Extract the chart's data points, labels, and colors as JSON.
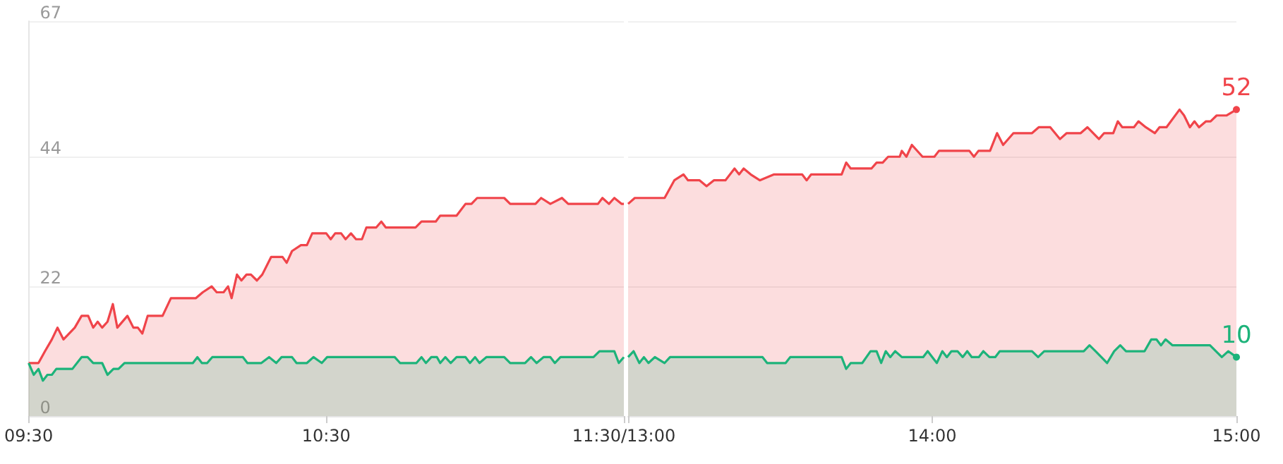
{
  "chart_data": [
    {
      "type": "area",
      "xlim": [
        9.5,
        11.5
      ],
      "xticks": [
        {
          "value": 9.5,
          "label": "09:30"
        },
        {
          "value": 10.5,
          "label": "10:30"
        },
        {
          "value": 11.5,
          "label": "11:30/13:00"
        }
      ],
      "ylim": [
        0,
        67
      ],
      "yticks": [
        0,
        22,
        44,
        67
      ],
      "grid": "y",
      "series": [
        {
          "color": "#f0444a",
          "x": [
            9.5,
            9.533,
            9.555,
            9.578,
            9.597,
            9.617,
            9.655,
            9.678,
            9.7,
            9.717,
            9.732,
            9.747,
            9.765,
            9.783,
            9.798,
            9.832,
            9.852,
            9.867,
            9.882,
            9.9,
            9.95,
            9.978,
            10.062,
            10.085,
            10.115,
            10.132,
            10.155,
            10.17,
            10.182,
            10.2,
            10.215,
            10.232,
            10.247,
            10.267,
            10.285,
            10.315,
            10.353,
            10.367,
            10.385,
            10.415,
            10.435,
            10.453,
            10.5,
            10.515,
            10.53,
            10.55,
            10.565,
            10.583,
            10.6,
            10.62,
            10.635,
            10.668,
            10.685,
            10.7,
            10.8,
            10.82,
            10.868,
            10.883,
            10.938,
            10.968,
            10.988,
            11.007,
            11.098,
            11.118,
            11.203,
            11.222,
            11.253,
            11.292,
            11.313,
            11.413,
            11.428,
            11.45,
            11.468,
            11.492,
            11.5
          ],
          "values": [
            9,
            9,
            11,
            13,
            15,
            13,
            15,
            17,
            17,
            15,
            16,
            15,
            16,
            19,
            15,
            17,
            15,
            15,
            14,
            17,
            17,
            20,
            20,
            21,
            22,
            21,
            21,
            22,
            20,
            24,
            23,
            24,
            24,
            23,
            24,
            27,
            27,
            26,
            28,
            29,
            29,
            31,
            31,
            30,
            31,
            31,
            30,
            31,
            30,
            30,
            32,
            32,
            33,
            32,
            32,
            33,
            33,
            34,
            34,
            36,
            36,
            37,
            37,
            36,
            36,
            37,
            36,
            37,
            36,
            36,
            37,
            36,
            37,
            36,
            36
          ]
        },
        {
          "color": "#1db37a",
          "x": [
            9.5,
            9.517,
            9.533,
            9.548,
            9.563,
            9.578,
            9.593,
            9.647,
            9.678,
            9.698,
            9.717,
            9.747,
            9.765,
            9.785,
            9.802,
            9.822,
            10.052,
            10.067,
            10.082,
            10.1,
            10.117,
            10.22,
            10.235,
            10.282,
            10.308,
            10.332,
            10.35,
            10.385,
            10.4,
            10.435,
            10.457,
            10.485,
            10.503,
            10.73,
            10.748,
            10.803,
            10.82,
            10.835,
            10.853,
            10.872,
            10.883,
            10.9,
            10.918,
            10.938,
            10.968,
            10.983,
            11,
            11.015,
            11.038,
            11.098,
            11.118,
            11.168,
            11.188,
            11.207,
            11.23,
            11.253,
            11.268,
            11.287,
            11.398,
            11.418,
            11.468,
            11.483,
            11.5
          ],
          "values": [
            9,
            7,
            8,
            6,
            7,
            7,
            8,
            8,
            10,
            10,
            9,
            9,
            7,
            8,
            8,
            9,
            9,
            10,
            9,
            9,
            10,
            10,
            9,
            9,
            10,
            9,
            10,
            10,
            9,
            9,
            10,
            9,
            10,
            10,
            9,
            9,
            10,
            9,
            10,
            10,
            9,
            10,
            9,
            10,
            10,
            9,
            10,
            9,
            10,
            10,
            9,
            9,
            10,
            9,
            10,
            10,
            9,
            10,
            10,
            11,
            11,
            9,
            10
          ]
        }
      ]
    },
    {
      "type": "area",
      "xlim": [
        13,
        15
      ],
      "xticks": [
        {
          "value": 13,
          "label": null
        },
        {
          "value": 14,
          "label": "14:00"
        },
        {
          "value": 15,
          "label": "15:00"
        }
      ],
      "ylim": [
        0,
        67
      ],
      "yticks": [
        0,
        22,
        44,
        67
      ],
      "grid": "y",
      "tick_labels": "x",
      "series": [
        {
          "color": "#f0444a",
          "x": [
            13,
            13.022,
            13.12,
            13.152,
            13.182,
            13.197,
            13.235,
            13.258,
            13.282,
            13.32,
            13.35,
            13.365,
            13.38,
            13.403,
            13.433,
            13.48,
            13.572,
            13.587,
            13.602,
            13.702,
            13.717,
            13.732,
            13.8,
            13.817,
            13.837,
            13.855,
            13.893,
            13.9,
            13.915,
            13.933,
            13.968,
            14.007,
            14.022,
            14.122,
            14.137,
            14.152,
            14.19,
            14.213,
            14.233,
            14.267,
            14.328,
            14.35,
            14.388,
            14.42,
            14.442,
            14.488,
            14.51,
            14.548,
            14.565,
            14.595,
            14.61,
            14.625,
            14.663,
            14.678,
            14.702,
            14.732,
            14.747,
            14.77,
            14.813,
            14.828,
            14.847,
            14.862,
            14.877,
            14.9,
            14.915,
            14.935,
            14.968,
            15
          ],
          "values": [
            36,
            37,
            37,
            40,
            41,
            40,
            40,
            39,
            40,
            40,
            42,
            41,
            42,
            41,
            40,
            41,
            41,
            40,
            41,
            41,
            43,
            42,
            42,
            43,
            43,
            44,
            44,
            45,
            44,
            46,
            44,
            44,
            45,
            45,
            44,
            45,
            45,
            48,
            46,
            48,
            48,
            49,
            49,
            47,
            48,
            48,
            49,
            47,
            48,
            48,
            50,
            49,
            49,
            50,
            49,
            48,
            49,
            49,
            52,
            51,
            49,
            50,
            49,
            50,
            50,
            51,
            51,
            52
          ],
          "value_labels": [
            null,
            null,
            null,
            null,
            null,
            null,
            null,
            null,
            null,
            null,
            null,
            null,
            null,
            null,
            null,
            null,
            null,
            null,
            null,
            null,
            null,
            null,
            null,
            null,
            null,
            null,
            null,
            null,
            null,
            null,
            null,
            null,
            null,
            null,
            null,
            null,
            null,
            null,
            null,
            null,
            null,
            null,
            null,
            null,
            null,
            null,
            null,
            null,
            null,
            null,
            null,
            null,
            null,
            null,
            null,
            null,
            null,
            null,
            null,
            null,
            null,
            null,
            null,
            null,
            null,
            null,
            null,
            "52"
          ]
        },
        {
          "color": "#1db37a",
          "x": [
            13,
            13.018,
            13.037,
            13.052,
            13.067,
            13.088,
            13.12,
            13.138,
            13.442,
            13.457,
            13.518,
            13.533,
            13.702,
            13.717,
            13.732,
            13.77,
            13.797,
            13.817,
            13.832,
            13.847,
            13.862,
            13.878,
            13.9,
            13.97,
            13.985,
            14.015,
            14.033,
            14.048,
            14.063,
            14.083,
            14.1,
            14.115,
            14.13,
            14.153,
            14.168,
            14.188,
            14.207,
            14.222,
            14.328,
            14.348,
            14.368,
            14.498,
            14.517,
            14.537,
            14.575,
            14.598,
            14.618,
            14.637,
            14.698,
            14.72,
            14.737,
            14.752,
            14.767,
            14.79,
            14.913,
            14.952,
            14.973,
            15
          ],
          "values": [
            10,
            11,
            9,
            10,
            9,
            10,
            9,
            10,
            10,
            9,
            9,
            10,
            10,
            8,
            9,
            9,
            11,
            11,
            9,
            11,
            10,
            11,
            10,
            10,
            11,
            9,
            11,
            10,
            11,
            11,
            10,
            11,
            10,
            10,
            11,
            10,
            10,
            11,
            11,
            10,
            11,
            11,
            12,
            11,
            9,
            11,
            12,
            11,
            11,
            13,
            13,
            12,
            13,
            12,
            12,
            10,
            11,
            10
          ],
          "value_labels": [
            null,
            null,
            null,
            null,
            null,
            null,
            null,
            null,
            null,
            null,
            null,
            null,
            null,
            null,
            null,
            null,
            null,
            null,
            null,
            null,
            null,
            null,
            null,
            null,
            null,
            null,
            null,
            null,
            null,
            null,
            null,
            null,
            null,
            null,
            null,
            null,
            null,
            null,
            null,
            null,
            null,
            null,
            null,
            null,
            null,
            null,
            null,
            null,
            null,
            null,
            null,
            null,
            null,
            null,
            null,
            null,
            null,
            "10"
          ]
        }
      ]
    }
  ]
}
